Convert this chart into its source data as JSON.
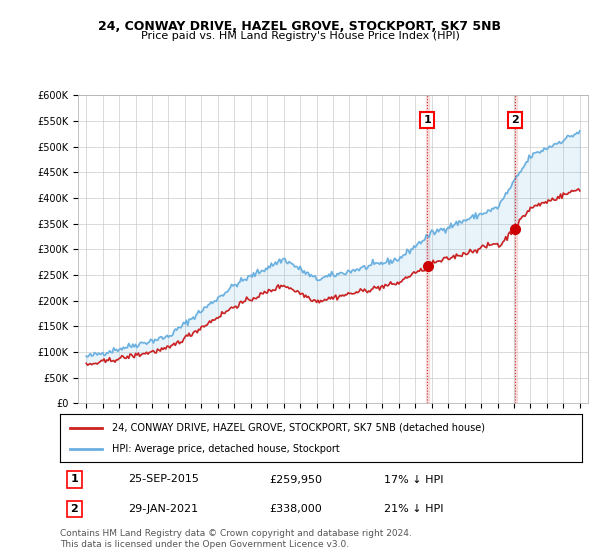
{
  "title": "24, CONWAY DRIVE, HAZEL GROVE, STOCKPORT, SK7 5NB",
  "subtitle": "Price paid vs. HM Land Registry's House Price Index (HPI)",
  "legend_line1": "24, CONWAY DRIVE, HAZEL GROVE, STOCKPORT, SK7 5NB (detached house)",
  "legend_line2": "HPI: Average price, detached house, Stockport",
  "annotation1_label": "1",
  "annotation1_date": "25-SEP-2015",
  "annotation1_price": "£259,950",
  "annotation1_hpi": "17% ↓ HPI",
  "annotation1_year": 2015.73,
  "annotation1_value": 259950,
  "annotation2_label": "2",
  "annotation2_date": "29-JAN-2021",
  "annotation2_price": "£338,000",
  "annotation2_hpi": "21% ↓ HPI",
  "annotation2_year": 2021.08,
  "annotation2_value": 338000,
  "footer": "Contains HM Land Registry data © Crown copyright and database right 2024.\nThis data is licensed under the Open Government Licence v3.0.",
  "hpi_color": "#6ab0e0",
  "price_color": "#cc2222",
  "annotation_color": "#cc0000",
  "vline_color": "#cc0000",
  "background_color": "#ffffff",
  "grid_color": "#cccccc",
  "ylim_min": 0,
  "ylim_max": 600000,
  "xlim_min": 1994.5,
  "xlim_max": 2025.5
}
